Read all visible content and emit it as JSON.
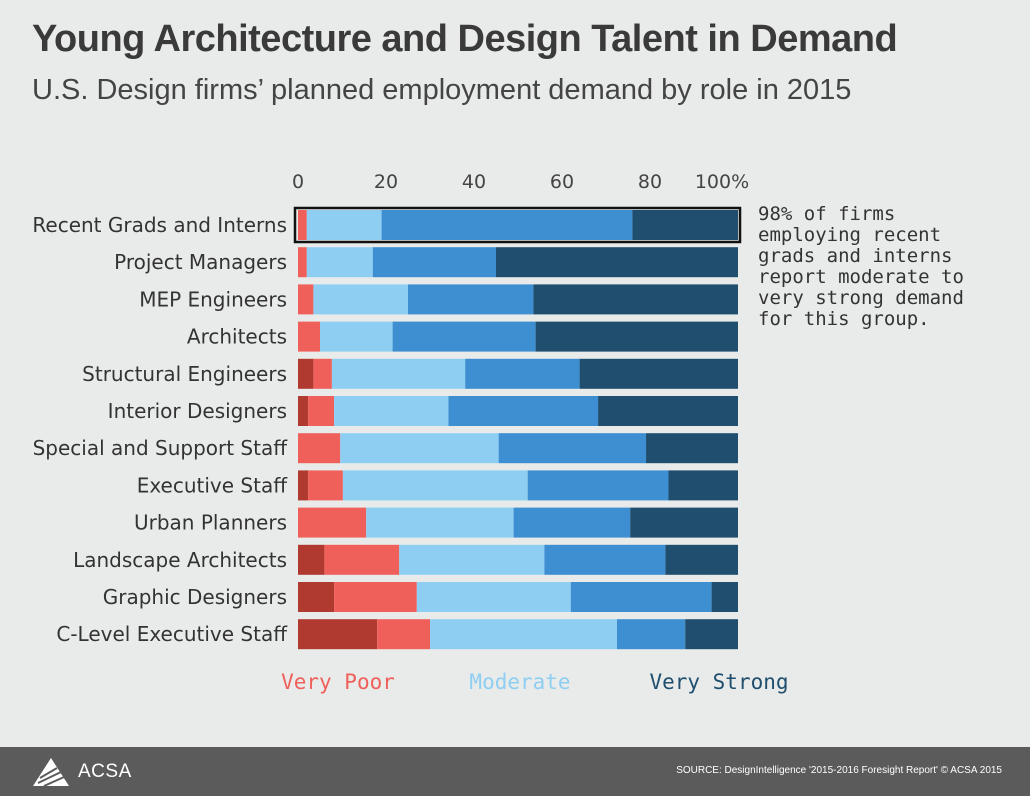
{
  "header": {
    "title": "Young Architecture and Design Talent in Demand",
    "subtitle": "U.S. Design firms’ planned employment demand by role in 2015"
  },
  "annotation": "98% of firms employing recent grads and interns report moderate to very strong demand for this group.",
  "footer": {
    "logo_text": "ACSA",
    "source": "SOURCE: DesignIntelligence '2015-2016 Foresight Report'   © ACSA 2015"
  },
  "legend": [
    {
      "label": "Very Poor",
      "color": "#f0605a"
    },
    {
      "label": "Moderate",
      "color": "#8ecef2"
    },
    {
      "label": "Very Strong",
      "color": "#1f4e6e"
    }
  ],
  "chart_data": {
    "type": "bar",
    "orientation": "horizontal",
    "stacked": true,
    "highlighted_category": "Recent Grads and Interns",
    "xlim": [
      0,
      100
    ],
    "xticks": [
      "0",
      "20",
      "40",
      "60",
      "80",
      "100%"
    ],
    "xtick_values": [
      0,
      20,
      40,
      60,
      80,
      100
    ],
    "categories": [
      "Recent Grads and Interns",
      "Project Managers",
      "MEP Engineers",
      "Architects",
      "Structural Engineers",
      "Interior Designers",
      "Special and Support Staff",
      "Executive Staff",
      "Urban Planners",
      "Landscape Architects",
      "Graphic Designers",
      "C-Level Executive Staff"
    ],
    "series": [
      {
        "color": "#b03a30",
        "values": [
          0,
          0,
          0,
          0,
          3.5,
          2.3,
          0,
          2.3,
          0,
          6,
          8.2,
          18
        ]
      },
      {
        "color": "#f0605a",
        "values": [
          2,
          2,
          3.5,
          5,
          4.2,
          5.9,
          9.6,
          7.9,
          15.5,
          17,
          18.8,
          12
        ]
      },
      {
        "color": "#8ecef2",
        "values": [
          17,
          15,
          21.5,
          16.5,
          30.3,
          26,
          36,
          42,
          33.5,
          33,
          35,
          42.5
        ]
      },
      {
        "color": "#3d8fd1",
        "values": [
          57,
          28,
          28.5,
          32.5,
          26,
          34,
          33.5,
          32,
          26.5,
          27.5,
          32,
          15.5
        ]
      },
      {
        "color": "#1f4e6e",
        "values": [
          24,
          55,
          46.5,
          46,
          36,
          31.8,
          20.9,
          15.8,
          24.5,
          16.5,
          6,
          12
        ]
      }
    ]
  }
}
